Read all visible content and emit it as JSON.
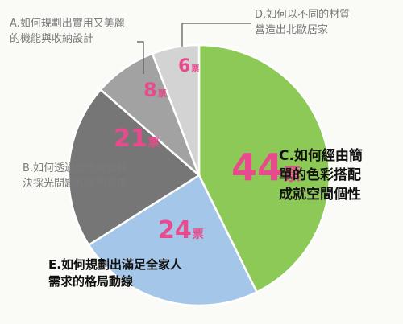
{
  "chart_data": {
    "type": "pie",
    "unit": "票",
    "slices": [
      {
        "key": "C",
        "label": "C.如何經由簡單的色彩搭配成就空間個性",
        "value": 44,
        "color": "#8dc956"
      },
      {
        "key": "E",
        "label": "E.如何規劃出滿足全家人需求的格局動線",
        "value": 24,
        "color": "#a3c6e9"
      },
      {
        "key": "B",
        "label": "B.如何透過燈光配置解決採光問題和照明需求",
        "value": 21,
        "color": "#767676"
      },
      {
        "key": "A",
        "label": "A.如何規劃出實用又美麗的機能與收納設計",
        "value": 8,
        "color": "#a2a2a2"
      },
      {
        "key": "D",
        "label": "D.如何以不同的材質營造出北歐居家",
        "value": 6,
        "color": "#d3d3d3"
      }
    ],
    "number_color": "#e84b8d"
  },
  "labels": {
    "C": [
      "C.如何經由簡",
      "單的色彩搭配",
      "成就空間個性"
    ],
    "E": [
      "E.如何規劃出滿足全家人",
      "需求的格局動線"
    ],
    "B": [
      "B.如何透過燈光配置解",
      "決採光問題和照明需求"
    ],
    "A": [
      "A.如何規劃出實用又美麗",
      "的機能與收納設計"
    ],
    "D": [
      "D.如何以不同的材質",
      "營造出北歐居家"
    ]
  }
}
